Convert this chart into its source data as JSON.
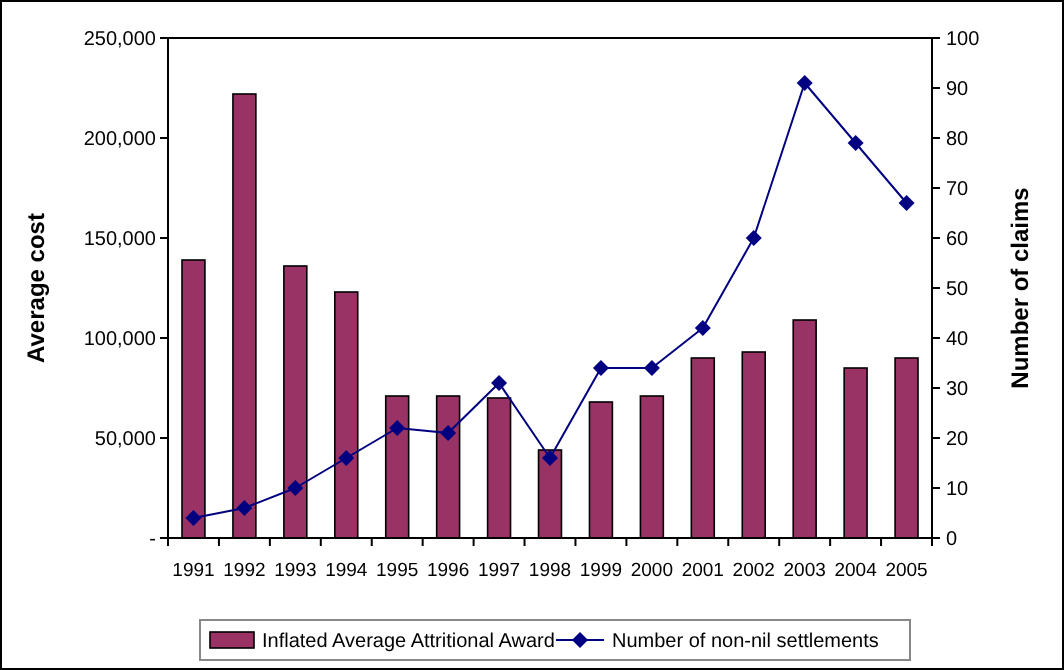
{
  "chart_data": {
    "type": "bar",
    "ylabel": "Average cost",
    "y2label": "Number of claims",
    "categories": [
      "1991",
      "1992",
      "1993",
      "1994",
      "1995",
      "1996",
      "1997",
      "1998",
      "1999",
      "2000",
      "2001",
      "2002",
      "2003",
      "2004",
      "2005"
    ],
    "series": [
      {
        "name": "Inflated Average Attritional Award",
        "color": "#993366",
        "values": [
          139000,
          222000,
          136000,
          123000,
          71000,
          71000,
          70000,
          44000,
          68000,
          71000,
          90000,
          93000,
          109000,
          85000,
          90000
        ]
      },
      {
        "name": "Number of non-nil settlements",
        "color": "#000080",
        "type": "line",
        "axis": "y2",
        "marker": "diamond",
        "values": [
          4,
          6,
          10,
          16,
          22,
          21,
          31,
          16,
          34,
          34,
          42,
          60,
          91,
          79,
          67
        ]
      }
    ],
    "ylim": [
      0,
      250000
    ],
    "yticks": [
      {
        "value": 0,
        "label": "-"
      },
      {
        "value": 50000,
        "label": "50,000"
      },
      {
        "value": 100000,
        "label": "100,000"
      },
      {
        "value": 150000,
        "label": "150,000"
      },
      {
        "value": 200000,
        "label": "200,000"
      },
      {
        "value": 250000,
        "label": "250,000"
      }
    ],
    "y2lim": [
      0,
      100
    ],
    "y2ticks": [
      0,
      10,
      20,
      30,
      40,
      50,
      60,
      70,
      80,
      90,
      100
    ],
    "legend": "bottom",
    "grid": false
  }
}
